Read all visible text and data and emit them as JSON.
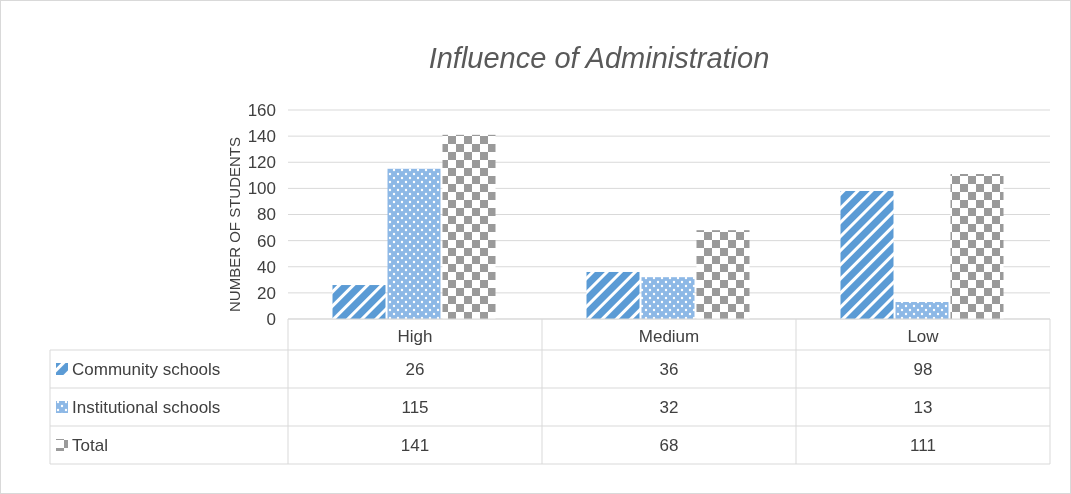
{
  "chart_data": {
    "type": "bar",
    "title": "Influence of Administration",
    "ylabel": "NUMBER OF STUDENTS",
    "categories": [
      "High",
      "Medium",
      "Low"
    ],
    "series": [
      {
        "name": "Community schools",
        "color": "#5b9bd5",
        "values": [
          26,
          36,
          98
        ]
      },
      {
        "name": "Institutional schools",
        "color": "#8db8e6",
        "values": [
          115,
          32,
          13
        ]
      },
      {
        "name": "Total",
        "color": "#9a9a9a",
        "values": [
          141,
          68,
          111
        ]
      }
    ],
    "ylim": [
      0,
      160
    ],
    "yticks": [
      0,
      20,
      40,
      60,
      80,
      100,
      120,
      140,
      160
    ],
    "grid": "y",
    "legend": "bottom",
    "data_labels": true
  }
}
